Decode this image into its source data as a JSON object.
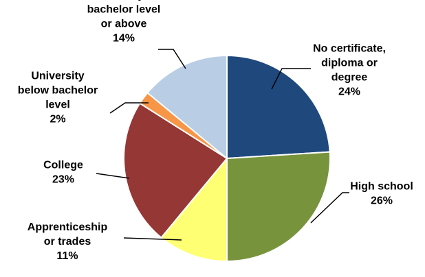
{
  "chart_data": {
    "type": "pie",
    "slices": [
      {
        "label_lines": [
          "No certificate,",
          "diploma or",
          "degree"
        ],
        "percent_label": "24%",
        "value": 24,
        "color": "#1F497D"
      },
      {
        "label_lines": [
          "High school"
        ],
        "percent_label": "26%",
        "value": 26,
        "color": "#77933C"
      },
      {
        "label_lines": [
          "Apprenticeship",
          "or trades"
        ],
        "percent_label": "11%",
        "value": 11,
        "color": "#FFFF73"
      },
      {
        "label_lines": [
          "College"
        ],
        "percent_label": "23%",
        "value": 23,
        "color": "#953735"
      },
      {
        "label_lines": [
          "University",
          "below bachelor",
          "level"
        ],
        "percent_label": "2%",
        "value": 2,
        "color": "#F79646"
      },
      {
        "label_lines": [
          "University at",
          "bachelor level",
          "or above"
        ],
        "percent_label": "14%",
        "value": 14,
        "color": "#B9CDE5"
      }
    ],
    "start_angle_deg": 0,
    "direction": "clockwise",
    "legend": "none"
  }
}
